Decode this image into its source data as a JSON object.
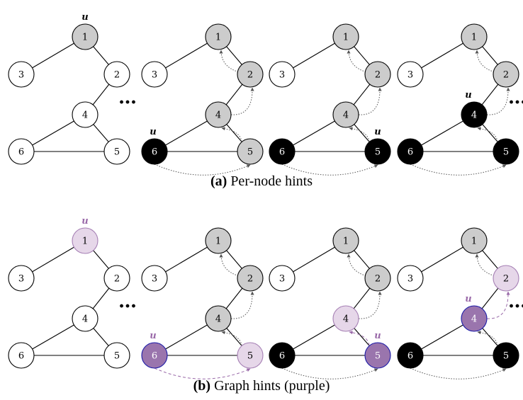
{
  "colors": {
    "white": "#ffffff",
    "gray": "#cccccc",
    "black": "#000000",
    "lightPurple": "#e6d7e9",
    "darkPurple": "#9a75ad",
    "purpleStroke": "#a57fb4",
    "blueStroke": "#1a1aa8",
    "purpleLabel": "#9a6aa9",
    "arrowGray": "#555555"
  },
  "node_ids": [
    "1",
    "2",
    "3",
    "4",
    "5",
    "6"
  ],
  "u_label": "u",
  "ellipsis": "…",
  "captions": {
    "a": {
      "tag": "(a)",
      "text": "Per-node hints"
    },
    "b": {
      "tag": "(b)",
      "text": "Graph hints (purple)"
    }
  },
  "rows": [
    {
      "name": "per-node-hints",
      "panels": [
        {
          "nodes": {
            "1": "gray",
            "2": "white",
            "3": "white",
            "4": "white",
            "5": "white",
            "6": "white"
          },
          "u_node": "1",
          "u_color": "black",
          "arrows": []
        },
        {
          "nodes": {
            "1": "gray",
            "2": "gray",
            "3": "white",
            "4": "gray",
            "5": "gray",
            "6": "black"
          },
          "u_node": "6",
          "u_color": "black",
          "arrows": [
            {
              "from": "2",
              "to": "1",
              "style": "dotted"
            },
            {
              "from": "4",
              "to": "2",
              "style": "dotted"
            },
            {
              "from": "5",
              "to": "4",
              "style": "dotted"
            },
            {
              "from": "6",
              "to": "5",
              "style": "dotted"
            }
          ]
        },
        {
          "nodes": {
            "1": "gray",
            "2": "gray",
            "3": "white",
            "4": "gray",
            "5": "black",
            "6": "black"
          },
          "u_node": "5",
          "u_color": "black",
          "arrows": [
            {
              "from": "2",
              "to": "1",
              "style": "dotted"
            },
            {
              "from": "4",
              "to": "2",
              "style": "dotted"
            },
            {
              "from": "5",
              "to": "4",
              "style": "dotted"
            },
            {
              "from": "6",
              "to": "5",
              "style": "dotted"
            }
          ]
        },
        {
          "nodes": {
            "1": "gray",
            "2": "gray",
            "3": "white",
            "4": "black",
            "5": "black",
            "6": "black"
          },
          "u_node": "4",
          "u_color": "black",
          "arrows": [
            {
              "from": "2",
              "to": "1",
              "style": "dotted"
            },
            {
              "from": "4",
              "to": "2",
              "style": "dotted"
            },
            {
              "from": "5",
              "to": "4",
              "style": "dotted"
            },
            {
              "from": "6",
              "to": "5",
              "style": "dotted"
            }
          ]
        }
      ]
    },
    {
      "name": "graph-hints",
      "panels": [
        {
          "nodes": {
            "1": "lightPurple",
            "2": "white",
            "3": "white",
            "4": "white",
            "5": "white",
            "6": "white"
          },
          "u_node": "1",
          "u_color": "purple",
          "arrows": []
        },
        {
          "nodes": {
            "1": "gray",
            "2": "gray",
            "3": "white",
            "4": "gray",
            "5": "lightPurple",
            "6": "darkPurple"
          },
          "u_node": "6",
          "u_color": "purple",
          "arrows": [
            {
              "from": "2",
              "to": "1",
              "style": "dotted"
            },
            {
              "from": "4",
              "to": "2",
              "style": "dotted"
            },
            {
              "from": "5",
              "to": "4",
              "style": "dotted"
            },
            {
              "from": "6",
              "to": "5",
              "style": "dashed-purple"
            }
          ]
        },
        {
          "nodes": {
            "1": "gray",
            "2": "gray",
            "3": "white",
            "4": "lightPurple",
            "5": "darkPurple",
            "6": "black"
          },
          "u_node": "5",
          "u_color": "purple",
          "arrows": [
            {
              "from": "2",
              "to": "1",
              "style": "dotted"
            },
            {
              "from": "4",
              "to": "2",
              "style": "dotted"
            },
            {
              "from": "5",
              "to": "4",
              "style": "dashed-purple"
            },
            {
              "from": "6",
              "to": "5",
              "style": "dotted"
            }
          ]
        },
        {
          "nodes": {
            "1": "gray",
            "2": "lightPurple",
            "3": "white",
            "4": "darkPurple",
            "5": "black",
            "6": "black"
          },
          "u_node": "4",
          "u_color": "purple",
          "arrows": [
            {
              "from": "2",
              "to": "1",
              "style": "dotted"
            },
            {
              "from": "4",
              "to": "2",
              "style": "dashed-purple"
            },
            {
              "from": "5",
              "to": "4",
              "style": "dotted"
            },
            {
              "from": "6",
              "to": "5",
              "style": "dotted"
            }
          ]
        }
      ]
    }
  ]
}
